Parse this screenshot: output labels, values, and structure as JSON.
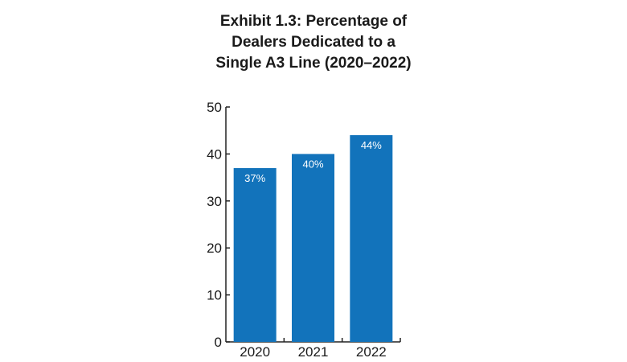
{
  "title_lines": [
    "Exhibit 1.3: Percentage of",
    "Dealers Dedicated to a",
    "Single A3 Line (2020–2022)"
  ],
  "colors": {
    "bar": "#1273bb",
    "axis": "#222222",
    "text": "#1a1a1a",
    "label": "#ffffff"
  },
  "chart_data": {
    "type": "bar",
    "title": "Exhibit 1.3: Percentage of Dealers Dedicated to a Single A3 Line (2020–2022)",
    "categories": [
      "2020",
      "2021",
      "2022"
    ],
    "values": [
      37,
      40,
      44
    ],
    "data_labels": [
      "37%",
      "40%",
      "44%"
    ],
    "ylim": [
      0,
      50
    ],
    "yticks": [
      0,
      10,
      20,
      30,
      40,
      50
    ],
    "grid": false,
    "legend": "none"
  }
}
